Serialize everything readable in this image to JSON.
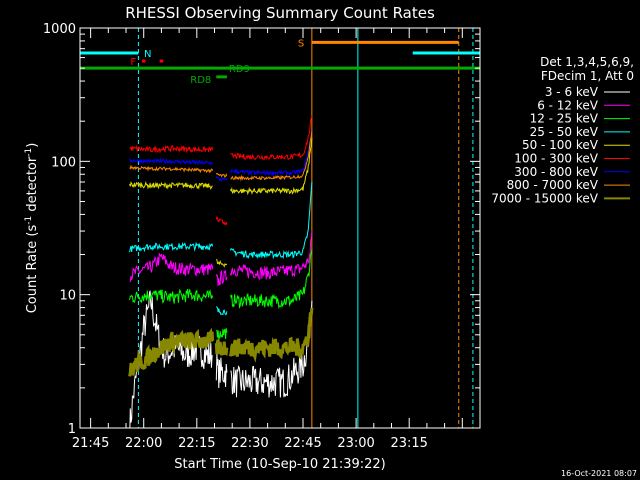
{
  "chart_data": {
    "type": "line",
    "title": "RHESSI Observing Summary Count Rates",
    "xlabel": "Start Time (10-Sep-10 21:39:22)",
    "ylabel_main": "Count Rate (s",
    "ylabel_sup": "-1",
    "ylabel_mid": " detector",
    "ylabel_sup2": "-1",
    "ylabel_end": ")",
    "ylim": [
      1,
      1000
    ],
    "yscale": "log",
    "xlim_minutes": [
      -3,
      110
    ],
    "x_ticks": [
      {
        "label": "21:45",
        "value": 0
      },
      {
        "label": "22:00",
        "value": 15
      },
      {
        "label": "22:15",
        "value": 30
      },
      {
        "label": "22:30",
        "value": 45
      },
      {
        "label": "22:45",
        "value": 60
      },
      {
        "label": "23:00",
        "value": 75
      },
      {
        "label": "23:15",
        "value": 90
      }
    ],
    "y_ticks": [
      {
        "label": "1",
        "value": 1
      },
      {
        "label": "10",
        "value": 10
      },
      {
        "label": "100",
        "value": 100
      },
      {
        "label": "1000",
        "value": 1000
      }
    ],
    "legend": {
      "header": [
        "Det 1,3,4,5,6,9,",
        "FDecim 1, Att 0"
      ],
      "placement": "right"
    },
    "series": [
      {
        "name": "3 - 6 keV",
        "color": "#ffffff",
        "segments": [
          [
            [
              11,
              1
            ],
            [
              12,
              1.7
            ],
            [
              13,
              2.5
            ],
            [
              15,
              5.5
            ],
            [
              17,
              9
            ],
            [
              19,
              5
            ],
            [
              21,
              3.5
            ],
            [
              24,
              4
            ],
            [
              27,
              3.5
            ],
            [
              30,
              4
            ],
            [
              33,
              3.5
            ],
            [
              34.5,
              3.5
            ]
          ],
          [
            [
              35.5,
              3
            ],
            [
              36,
              2.6
            ],
            [
              37,
              2.6
            ],
            [
              38.5,
              2.6
            ]
          ],
          [
            [
              39.5,
              2.4
            ],
            [
              41,
              2.2
            ],
            [
              45,
              2.2
            ],
            [
              50,
              2.2
            ],
            [
              55,
              2.2
            ],
            [
              60,
              3
            ],
            [
              61.5,
              4.5
            ],
            [
              62.5,
              9
            ]
          ]
        ],
        "noise": 0.12
      },
      {
        "name": "6 - 12 keV",
        "color": "#ff00ff",
        "segments": [
          [
            [
              11,
              14
            ],
            [
              14,
              15
            ],
            [
              17,
              16
            ],
            [
              20,
              19
            ],
            [
              23,
              16
            ],
            [
              27,
              15.5
            ],
            [
              31,
              15.5
            ],
            [
              34.5,
              15.5
            ]
          ],
          [
            [
              35.5,
              13
            ],
            [
              36,
              12.5
            ],
            [
              37,
              13.5
            ],
            [
              38.5,
              13.5
            ]
          ],
          [
            [
              39.5,
              15.5
            ],
            [
              44,
              15
            ],
            [
              50,
              14.5
            ],
            [
              55,
              15
            ],
            [
              59,
              15.5
            ],
            [
              61,
              17
            ],
            [
              62,
              20
            ],
            [
              62.5,
              30
            ]
          ]
        ],
        "noise": 0.05
      },
      {
        "name": "12 - 25 keV",
        "color": "#00ff00",
        "segments": [
          [
            [
              11,
              9.5
            ],
            [
              17,
              10
            ],
            [
              23,
              9.5
            ],
            [
              29,
              10
            ],
            [
              34.5,
              9.5
            ]
          ],
          [
            [
              35.5,
              6
            ],
            [
              36,
              5
            ],
            [
              37,
              5.2
            ],
            [
              38.5,
              5.2
            ]
          ],
          [
            [
              39.5,
              9
            ],
            [
              45,
              9
            ],
            [
              51,
              9
            ],
            [
              57,
              9
            ],
            [
              60,
              10
            ],
            [
              61.5,
              14
            ],
            [
              62.5,
              22
            ]
          ]
        ],
        "noise": 0.05
      },
      {
        "name": "25 - 50 keV",
        "color": "#00ffff",
        "segments": [
          [
            [
              11,
              22
            ],
            [
              17,
              23
            ],
            [
              23,
              23
            ],
            [
              29,
              23
            ],
            [
              34.5,
              23
            ]
          ],
          [
            [
              35.5,
              8
            ],
            [
              36,
              7.5
            ],
            [
              37,
              7.5
            ],
            [
              38.5,
              7.5
            ]
          ],
          [
            [
              39.5,
              21
            ],
            [
              45,
              20
            ],
            [
              51,
              20
            ],
            [
              57,
              20
            ],
            [
              60,
              21
            ],
            [
              61.5,
              30
            ],
            [
              62.5,
              70
            ]
          ]
        ],
        "noise": 0.025
      },
      {
        "name": "50 - 100 keV",
        "color": "#dddd00",
        "segments": [
          [
            [
              11,
              67
            ],
            [
              17,
              66
            ],
            [
              23,
              66
            ],
            [
              29,
              66
            ],
            [
              34.5,
              65
            ]
          ],
          [
            [
              35.5,
              18
            ],
            [
              36,
              17
            ],
            [
              37,
              17
            ],
            [
              38.5,
              17
            ]
          ],
          [
            [
              39.5,
              60
            ],
            [
              45,
              60
            ],
            [
              51,
              60
            ],
            [
              57,
              60
            ],
            [
              60,
              62
            ],
            [
              61.5,
              90
            ],
            [
              62.5,
              150
            ]
          ]
        ],
        "noise": 0.02
      },
      {
        "name": "100 - 300 keV",
        "color": "#ff0000",
        "segments": [
          [
            [
              11,
              125
            ],
            [
              17,
              122
            ],
            [
              23,
              125
            ],
            [
              29,
              123
            ],
            [
              34.5,
              122
            ]
          ],
          [
            [
              35.5,
              38
            ],
            [
              36,
              36
            ],
            [
              37,
              35
            ],
            [
              38.5,
              35
            ]
          ],
          [
            [
              39.5,
              110
            ],
            [
              45,
              108
            ],
            [
              51,
              108
            ],
            [
              57,
              108
            ],
            [
              60,
              112
            ],
            [
              61.5,
              150
            ],
            [
              62.5,
              220
            ]
          ]
        ],
        "noise": 0.02
      },
      {
        "name": "300 - 800 keV",
        "color": "#0000ff",
        "segments": [
          [
            [
              11,
              102
            ],
            [
              17,
              100
            ],
            [
              23,
              100
            ],
            [
              29,
              98
            ],
            [
              34.5,
              97
            ]
          ],
          [
            [
              35.5,
              76
            ],
            [
              36,
              74
            ],
            [
              37,
              73
            ],
            [
              38.5,
              72
            ]
          ],
          [
            [
              39.5,
              85
            ],
            [
              45,
              82
            ],
            [
              51,
              82
            ],
            [
              57,
              82
            ],
            [
              60,
              85
            ],
            [
              61.5,
              120
            ],
            [
              62.5,
              170
            ]
          ]
        ],
        "noise": 0.015
      },
      {
        "name": "800 - 7000 keV",
        "color": "#ff8800",
        "segments": [
          [
            [
              11,
              90
            ],
            [
              17,
              88
            ],
            [
              23,
              88
            ],
            [
              29,
              86
            ],
            [
              34.5,
              85
            ]
          ],
          [
            [
              35.5,
              80
            ],
            [
              37,
              78
            ],
            [
              38.5,
              78
            ]
          ],
          [
            [
              39.5,
              75
            ],
            [
              45,
              75
            ],
            [
              51,
              75
            ],
            [
              57,
              76
            ],
            [
              60,
              78
            ],
            [
              61.5,
              110
            ],
            [
              62.5,
              170
            ]
          ]
        ],
        "noise": 0.012
      },
      {
        "name": "7000 - 15000 keV",
        "color": "#888800",
        "segments": [
          [
            [
              11,
              2.6
            ],
            [
              12,
              2.8
            ],
            [
              13,
              3
            ],
            [
              15,
              3.2
            ],
            [
              17,
              3.5
            ],
            [
              20,
              4
            ],
            [
              23,
              4.5
            ],
            [
              26,
              4.5
            ],
            [
              30,
              4.5
            ],
            [
              34.5,
              4.5
            ]
          ],
          [
            [
              35.5,
              4
            ],
            [
              36,
              4
            ],
            [
              37,
              4
            ],
            [
              38.5,
              4
            ]
          ],
          [
            [
              39.5,
              4
            ],
            [
              44,
              4
            ],
            [
              50,
              4
            ],
            [
              56,
              4
            ],
            [
              60,
              4
            ],
            [
              61.5,
              5
            ],
            [
              62.5,
              8
            ]
          ]
        ],
        "noise": 0.07,
        "thick": true
      }
    ],
    "annotations": {
      "N": {
        "label": "N",
        "color": "#00ffff",
        "segments": [
          [
            -3,
            13.5
          ],
          [
            91,
            110
          ]
        ],
        "level": 650
      },
      "F": {
        "label": "F",
        "color": "#ff0000",
        "segments": [
          [
            14.5,
            15.5
          ],
          [
            19.5,
            20.5
          ]
        ],
        "level": 565
      },
      "S": {
        "label": "S",
        "color": "#ff8800",
        "segments": [
          [
            62.5,
            104
          ]
        ],
        "level": 780
      },
      "RD9": {
        "label": "RD9",
        "color": "#00aa00",
        "segments": [
          [
            -3,
            110
          ]
        ],
        "level": 500
      },
      "RD8": {
        "label": "RD8",
        "color": "#00aa00",
        "segments": [
          [
            35.5,
            38.5
          ]
        ],
        "level": 430
      }
    },
    "vlines": [
      {
        "x": -3,
        "color": "#00ffff",
        "dash": false
      },
      {
        "x": 13.5,
        "color": "#00ffff",
        "dash": true
      },
      {
        "x": 62.5,
        "color": "#ff8800",
        "dash": false
      },
      {
        "x": 75.5,
        "color": "#00ffff",
        "dash": false
      },
      {
        "x": 104,
        "color": "#ff8800",
        "dash": true
      },
      {
        "x": 108,
        "color": "#00ffff",
        "dash": true
      }
    ]
  },
  "footer": {
    "timestamp": "16-Oct-2021 08:07"
  }
}
